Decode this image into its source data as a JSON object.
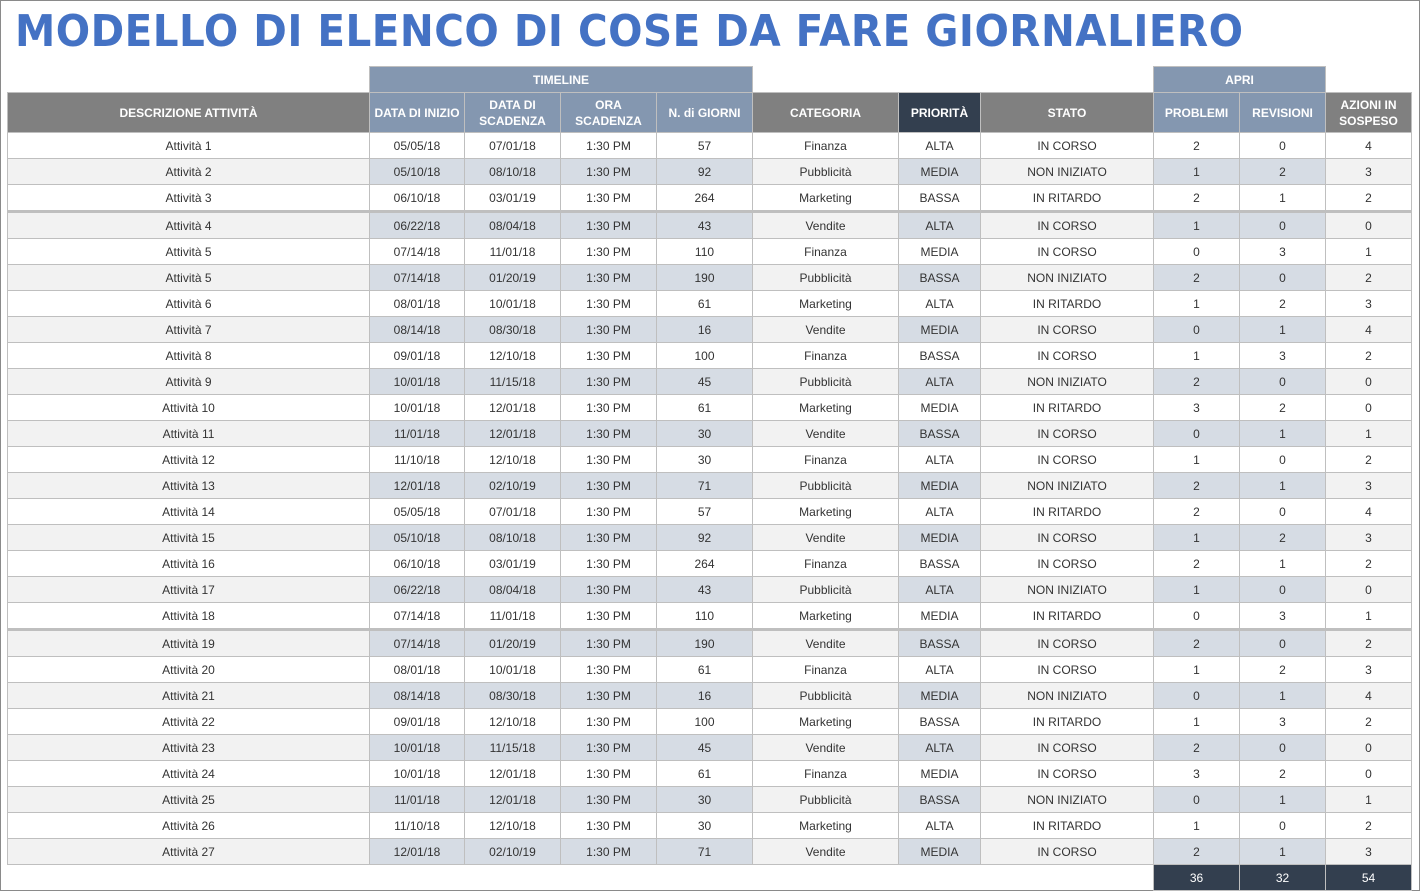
{
  "title": "MODELLO DI ELENCO DI COSE DA FARE GIORNALIERO",
  "groups": {
    "timeline": "TIMELINE",
    "apri": "APRI"
  },
  "headers": {
    "descrizione": "DESCRIZIONE ATTIVITÀ",
    "data_inizio": "DATA DI INIZIO",
    "data_scadenza": "DATA DI SCADENZA",
    "ora_scadenza": "ORA SCADENZA",
    "giorni": "N. di GIORNI",
    "categoria": "CATEGORIA",
    "priorita": "PRIORITÀ",
    "stato": "STATO",
    "problemi": "PROBLEMI",
    "revisioni": "REVISIONI",
    "azioni": "AZIONI IN SOSPESO"
  },
  "colors": {
    "title": "#4472c4",
    "header_grey": "#808080",
    "header_blue": "#8497b0",
    "header_dark": "#333f4f",
    "row_alt": "#f2f2f2",
    "tint": "#d6dce4"
  },
  "rows": [
    {
      "desc": "Attività 1",
      "start": "05/05/18",
      "due": "07/01/18",
      "time": "1:30 PM",
      "days": "57",
      "cat": "Finanza",
      "prio": "ALTA",
      "stato": "IN CORSO",
      "prob": "2",
      "rev": "0",
      "az": "4"
    },
    {
      "desc": "Attività 2",
      "start": "05/10/18",
      "due": "08/10/18",
      "time": "1:30 PM",
      "days": "92",
      "cat": "Pubblicità",
      "prio": "MEDIA",
      "stato": "NON INIZIATO",
      "prob": "1",
      "rev": "2",
      "az": "3"
    },
    {
      "desc": "Attività 3",
      "start": "06/10/18",
      "due": "03/01/19",
      "time": "1:30 PM",
      "days": "264",
      "cat": "Marketing",
      "prio": "BASSA",
      "stato": "IN RITARDO",
      "prob": "2",
      "rev": "1",
      "az": "2"
    },
    {
      "desc": "Attività 4",
      "start": "06/22/18",
      "due": "08/04/18",
      "time": "1:30 PM",
      "days": "43",
      "cat": "Vendite",
      "prio": "ALTA",
      "stato": "IN CORSO",
      "prob": "1",
      "rev": "0",
      "az": "0"
    },
    {
      "desc": "Attività 5",
      "start": "07/14/18",
      "due": "11/01/18",
      "time": "1:30 PM",
      "days": "110",
      "cat": "Finanza",
      "prio": "MEDIA",
      "stato": "IN CORSO",
      "prob": "0",
      "rev": "3",
      "az": "1"
    },
    {
      "desc": "Attività 5",
      "start": "07/14/18",
      "due": "01/20/19",
      "time": "1:30 PM",
      "days": "190",
      "cat": "Pubblicità",
      "prio": "BASSA",
      "stato": "NON INIZIATO",
      "prob": "2",
      "rev": "0",
      "az": "2"
    },
    {
      "desc": "Attività 6",
      "start": "08/01/18",
      "due": "10/01/18",
      "time": "1:30 PM",
      "days": "61",
      "cat": "Marketing",
      "prio": "ALTA",
      "stato": "IN RITARDO",
      "prob": "1",
      "rev": "2",
      "az": "3"
    },
    {
      "desc": "Attività 7",
      "start": "08/14/18",
      "due": "08/30/18",
      "time": "1:30 PM",
      "days": "16",
      "cat": "Vendite",
      "prio": "MEDIA",
      "stato": "IN CORSO",
      "prob": "0",
      "rev": "1",
      "az": "4"
    },
    {
      "desc": "Attività 8",
      "start": "09/01/18",
      "due": "12/10/18",
      "time": "1:30 PM",
      "days": "100",
      "cat": "Finanza",
      "prio": "BASSA",
      "stato": "IN CORSO",
      "prob": "1",
      "rev": "3",
      "az": "2"
    },
    {
      "desc": "Attività 9",
      "start": "10/01/18",
      "due": "11/15/18",
      "time": "1:30 PM",
      "days": "45",
      "cat": "Pubblicità",
      "prio": "ALTA",
      "stato": "NON INIZIATO",
      "prob": "2",
      "rev": "0",
      "az": "0"
    },
    {
      "desc": "Attività 10",
      "start": "10/01/18",
      "due": "12/01/18",
      "time": "1:30 PM",
      "days": "61",
      "cat": "Marketing",
      "prio": "MEDIA",
      "stato": "IN RITARDO",
      "prob": "3",
      "rev": "2",
      "az": "0"
    },
    {
      "desc": "Attività 11",
      "start": "11/01/18",
      "due": "12/01/18",
      "time": "1:30 PM",
      "days": "30",
      "cat": "Vendite",
      "prio": "BASSA",
      "stato": "IN CORSO",
      "prob": "0",
      "rev": "1",
      "az": "1"
    },
    {
      "desc": "Attività 12",
      "start": "11/10/18",
      "due": "12/10/18",
      "time": "1:30 PM",
      "days": "30",
      "cat": "Finanza",
      "prio": "ALTA",
      "stato": "IN CORSO",
      "prob": "1",
      "rev": "0",
      "az": "2"
    },
    {
      "desc": "Attività 13",
      "start": "12/01/18",
      "due": "02/10/19",
      "time": "1:30 PM",
      "days": "71",
      "cat": "Pubblicità",
      "prio": "MEDIA",
      "stato": "NON INIZIATO",
      "prob": "2",
      "rev": "1",
      "az": "3"
    },
    {
      "desc": "Attività 14",
      "start": "05/05/18",
      "due": "07/01/18",
      "time": "1:30 PM",
      "days": "57",
      "cat": "Marketing",
      "prio": "ALTA",
      "stato": "IN RITARDO",
      "prob": "2",
      "rev": "0",
      "az": "4"
    },
    {
      "desc": "Attività 15",
      "start": "05/10/18",
      "due": "08/10/18",
      "time": "1:30 PM",
      "days": "92",
      "cat": "Vendite",
      "prio": "MEDIA",
      "stato": "IN CORSO",
      "prob": "1",
      "rev": "2",
      "az": "3"
    },
    {
      "desc": "Attività 16",
      "start": "06/10/18",
      "due": "03/01/19",
      "time": "1:30 PM",
      "days": "264",
      "cat": "Finanza",
      "prio": "BASSA",
      "stato": "IN CORSO",
      "prob": "2",
      "rev": "1",
      "az": "2"
    },
    {
      "desc": "Attività 17",
      "start": "06/22/18",
      "due": "08/04/18",
      "time": "1:30 PM",
      "days": "43",
      "cat": "Pubblicità",
      "prio": "ALTA",
      "stato": "NON INIZIATO",
      "prob": "1",
      "rev": "0",
      "az": "0"
    },
    {
      "desc": "Attività 18",
      "start": "07/14/18",
      "due": "11/01/18",
      "time": "1:30 PM",
      "days": "110",
      "cat": "Marketing",
      "prio": "MEDIA",
      "stato": "IN RITARDO",
      "prob": "0",
      "rev": "3",
      "az": "1"
    },
    {
      "desc": "Attività 19",
      "start": "07/14/18",
      "due": "01/20/19",
      "time": "1:30 PM",
      "days": "190",
      "cat": "Vendite",
      "prio": "BASSA",
      "stato": "IN CORSO",
      "prob": "2",
      "rev": "0",
      "az": "2"
    },
    {
      "desc": "Attività 20",
      "start": "08/01/18",
      "due": "10/01/18",
      "time": "1:30 PM",
      "days": "61",
      "cat": "Finanza",
      "prio": "ALTA",
      "stato": "IN CORSO",
      "prob": "1",
      "rev": "2",
      "az": "3"
    },
    {
      "desc": "Attività 21",
      "start": "08/14/18",
      "due": "08/30/18",
      "time": "1:30 PM",
      "days": "16",
      "cat": "Pubblicità",
      "prio": "MEDIA",
      "stato": "NON INIZIATO",
      "prob": "0",
      "rev": "1",
      "az": "4"
    },
    {
      "desc": "Attività 22",
      "start": "09/01/18",
      "due": "12/10/18",
      "time": "1:30 PM",
      "days": "100",
      "cat": "Marketing",
      "prio": "BASSA",
      "stato": "IN RITARDO",
      "prob": "1",
      "rev": "3",
      "az": "2"
    },
    {
      "desc": "Attività 23",
      "start": "10/01/18",
      "due": "11/15/18",
      "time": "1:30 PM",
      "days": "45",
      "cat": "Vendite",
      "prio": "ALTA",
      "stato": "IN CORSO",
      "prob": "2",
      "rev": "0",
      "az": "0"
    },
    {
      "desc": "Attività 24",
      "start": "10/01/18",
      "due": "12/01/18",
      "time": "1:30 PM",
      "days": "61",
      "cat": "Finanza",
      "prio": "MEDIA",
      "stato": "IN CORSO",
      "prob": "3",
      "rev": "2",
      "az": "0"
    },
    {
      "desc": "Attività 25",
      "start": "11/01/18",
      "due": "12/01/18",
      "time": "1:30 PM",
      "days": "30",
      "cat": "Pubblicità",
      "prio": "BASSA",
      "stato": "NON INIZIATO",
      "prob": "0",
      "rev": "1",
      "az": "1"
    },
    {
      "desc": "Attività 26",
      "start": "11/10/18",
      "due": "12/10/18",
      "time": "1:30 PM",
      "days": "30",
      "cat": "Marketing",
      "prio": "ALTA",
      "stato": "IN RITARDO",
      "prob": "1",
      "rev": "0",
      "az": "2"
    },
    {
      "desc": "Attività 27",
      "start": "12/01/18",
      "due": "02/10/19",
      "time": "1:30 PM",
      "days": "71",
      "cat": "Vendite",
      "prio": "MEDIA",
      "stato": "IN CORSO",
      "prob": "2",
      "rev": "1",
      "az": "3"
    }
  ],
  "totals": {
    "problemi": "36",
    "revisioni": "32",
    "azioni": "54"
  }
}
